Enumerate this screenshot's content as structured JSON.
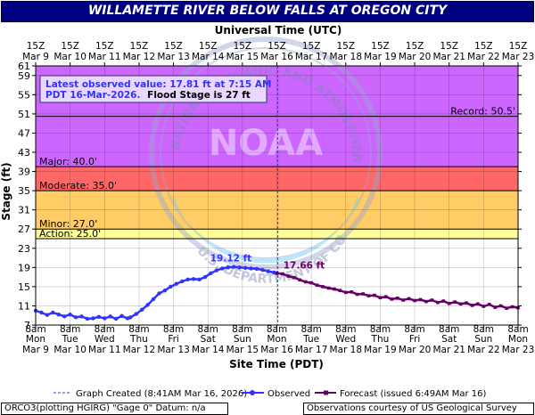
{
  "title": "WILLAMETTE RIVER BELOW FALLS AT OREGON CITY",
  "top_axis_label": "Universal Time (UTC)",
  "bottom_axis_label": "Site Time (PDT)",
  "y_axis_label": "Stage (ft)",
  "latest_value_line1": "Latest observed value: 17.81 ft at 7:15 AM",
  "latest_value_line2": "PDT 16-Mar-2026.",
  "latest_value_flood": "Flood Stage is 27 ft",
  "watermark_text": "NOAA",
  "watermark_ring_text": "NATIONAL OCEANIC AND ATMOSPHERIC ADMINISTRATION",
  "watermark_bottom_text": "U.S. DEPARTMENT OF COMMERCE",
  "legend": {
    "graph_created": "Graph Created (8:41AM Mar 16, 2026)",
    "observed": "Observed",
    "forecast": "Forecast (issued 6:49AM Mar 16)"
  },
  "footer_left": "ORCO3(plotting HGIRG) \"Gage 0\" Datum: n/a",
  "footer_right": "Observations courtesy of US Geological Survey",
  "colors": {
    "title_bg": "#000080",
    "record_zone": "#cc66ff",
    "major_zone": "#ff6666",
    "moderate_zone": "#ffcc66",
    "minor_zone": "#ffff99",
    "observed": "#3333ff",
    "forecast": "#660066",
    "plot_bg": "#ffffff",
    "watermark": "#66ccff"
  },
  "chart_data": {
    "type": "line",
    "title": "WILLAMETTE RIVER BELOW FALLS AT OREGON CITY",
    "xlabel": "Site Time (PDT)",
    "ylabel": "Stage (ft)",
    "x_range_hours": [
      0,
      336
    ],
    "ylim": [
      7,
      61
    ],
    "y_ticks": [
      7,
      11,
      15,
      19,
      23,
      27,
      31,
      35,
      39,
      43,
      47,
      51,
      55,
      59,
      61
    ],
    "x_ticks_bottom": [
      {
        "h": 0,
        "time": "8am",
        "day": "Mon",
        "date": "Mar 9"
      },
      {
        "h": 24,
        "time": "8am",
        "day": "Tue",
        "date": "Mar 10"
      },
      {
        "h": 48,
        "time": "8am",
        "day": "Wed",
        "date": "Mar 11"
      },
      {
        "h": 72,
        "time": "8am",
        "day": "Thu",
        "date": "Mar 12"
      },
      {
        "h": 96,
        "time": "8am",
        "day": "Fri",
        "date": "Mar 13"
      },
      {
        "h": 120,
        "time": "8am",
        "day": "Sat",
        "date": "Mar 14"
      },
      {
        "h": 144,
        "time": "8am",
        "day": "Sun",
        "date": "Mar 15"
      },
      {
        "h": 168,
        "time": "8am",
        "day": "Mon",
        "date": "Mar 16"
      },
      {
        "h": 192,
        "time": "8am",
        "day": "Tue",
        "date": "Mar 17"
      },
      {
        "h": 216,
        "time": "8am",
        "day": "Wed",
        "date": "Mar 18"
      },
      {
        "h": 240,
        "time": "8am",
        "day": "Thu",
        "date": "Mar 19"
      },
      {
        "h": 264,
        "time": "8am",
        "day": "Fri",
        "date": "Mar 20"
      },
      {
        "h": 288,
        "time": "8am",
        "day": "Sat",
        "date": "Mar 21"
      },
      {
        "h": 312,
        "time": "8am",
        "day": "Sun",
        "date": "Mar 22"
      },
      {
        "h": 336,
        "time": "8am",
        "day": "Mon",
        "date": "Mar 23"
      }
    ],
    "x_ticks_top": [
      {
        "h": 0,
        "time": "15Z",
        "date": "Mar  9"
      },
      {
        "h": 24,
        "time": "15Z",
        "date": "Mar 10"
      },
      {
        "h": 48,
        "time": "15Z",
        "date": "Mar 11"
      },
      {
        "h": 72,
        "time": "15Z",
        "date": "Mar 12"
      },
      {
        "h": 96,
        "time": "15Z",
        "date": "Mar 13"
      },
      {
        "h": 120,
        "time": "15Z",
        "date": "Mar 14"
      },
      {
        "h": 144,
        "time": "15Z",
        "date": "Mar 15"
      },
      {
        "h": 168,
        "time": "15Z",
        "date": "Mar 16"
      },
      {
        "h": 192,
        "time": "15Z",
        "date": "Mar 17"
      },
      {
        "h": 216,
        "time": "15Z",
        "date": "Mar 18"
      },
      {
        "h": 240,
        "time": "15Z",
        "date": "Mar 19"
      },
      {
        "h": 264,
        "time": "15Z",
        "date": "Mar 20"
      },
      {
        "h": 288,
        "time": "15Z",
        "date": "Mar 21"
      },
      {
        "h": 312,
        "time": "15Z",
        "date": "Mar 22"
      },
      {
        "h": 336,
        "time": "15Z",
        "date": "Mar 23"
      }
    ],
    "flood_categories": [
      {
        "name": "Record",
        "label": "Record: 50.5'",
        "from": 50.5,
        "to": 61,
        "color": "#cc66ff",
        "label_side": "right"
      },
      {
        "name": "Major",
        "label": "Major: 40.0'",
        "from": 40.0,
        "to": 50.5,
        "color": "#cc66ff",
        "label_side": "left"
      },
      {
        "name": "Moderate",
        "label": "Moderate: 35.0'",
        "from": 35.0,
        "to": 40.0,
        "color": "#ff6666",
        "label_side": "left"
      },
      {
        "name": "Minor",
        "label": "Minor: 27.0'",
        "from": 27.0,
        "to": 35.0,
        "color": "#ffcc66",
        "label_side": "left"
      },
      {
        "name": "Action",
        "label": "Action: 25.0'",
        "from": 25.0,
        "to": 27.0,
        "color": "#ffff99",
        "label_side": "left"
      }
    ],
    "graph_created_h": 168.7,
    "peak_annotation": {
      "label": "19.12 ft",
      "h": 136,
      "value": 19.12
    },
    "forecast_annotation": {
      "label": "17.66 ft",
      "h": 170,
      "value": 17.66
    },
    "series": [
      {
        "name": "Observed",
        "color": "#3333ff",
        "points": [
          [
            0,
            10.0
          ],
          [
            4,
            9.6
          ],
          [
            8,
            9.1
          ],
          [
            12,
            9.6
          ],
          [
            16,
            9.2
          ],
          [
            20,
            8.8
          ],
          [
            24,
            9.2
          ],
          [
            28,
            8.6
          ],
          [
            32,
            8.8
          ],
          [
            36,
            8.3
          ],
          [
            40,
            8.4
          ],
          [
            44,
            8.7
          ],
          [
            48,
            8.4
          ],
          [
            52,
            8.8
          ],
          [
            56,
            8.3
          ],
          [
            60,
            8.9
          ],
          [
            64,
            8.4
          ],
          [
            66,
            8.6
          ],
          [
            70,
            9.3
          ],
          [
            74,
            10.2
          ],
          [
            78,
            11.2
          ],
          [
            82,
            12.4
          ],
          [
            86,
            13.6
          ],
          [
            90,
            14.2
          ],
          [
            94,
            15.0
          ],
          [
            98,
            15.6
          ],
          [
            102,
            16.1
          ],
          [
            106,
            16.5
          ],
          [
            110,
            16.6
          ],
          [
            114,
            16.5
          ],
          [
            118,
            17.0
          ],
          [
            122,
            17.8
          ],
          [
            126,
            18.4
          ],
          [
            130,
            18.8
          ],
          [
            134,
            19.0
          ],
          [
            138,
            19.12
          ],
          [
            142,
            19.0
          ],
          [
            146,
            18.9
          ],
          [
            150,
            18.8
          ],
          [
            154,
            18.7
          ],
          [
            158,
            18.5
          ],
          [
            162,
            18.2
          ],
          [
            166,
            17.95
          ],
          [
            168,
            17.81
          ]
        ]
      },
      {
        "name": "Forecast",
        "color": "#660066",
        "points": [
          [
            168,
            17.81
          ],
          [
            172,
            17.66
          ],
          [
            176,
            17.2
          ],
          [
            180,
            16.9
          ],
          [
            184,
            16.4
          ],
          [
            188,
            16.0
          ],
          [
            192,
            15.8
          ],
          [
            196,
            15.3
          ],
          [
            200,
            15.0
          ],
          [
            204,
            14.7
          ],
          [
            208,
            14.5
          ],
          [
            212,
            14.2
          ],
          [
            216,
            13.8
          ],
          [
            220,
            13.9
          ],
          [
            224,
            13.4
          ],
          [
            228,
            13.5
          ],
          [
            232,
            13.1
          ],
          [
            236,
            13.2
          ],
          [
            240,
            12.7
          ],
          [
            244,
            12.9
          ],
          [
            248,
            12.4
          ],
          [
            252,
            12.6
          ],
          [
            256,
            12.2
          ],
          [
            260,
            12.5
          ],
          [
            264,
            12.1
          ],
          [
            268,
            12.3
          ],
          [
            272,
            11.9
          ],
          [
            276,
            12.2
          ],
          [
            280,
            11.7
          ],
          [
            284,
            12.0
          ],
          [
            288,
            11.5
          ],
          [
            292,
            11.8
          ],
          [
            296,
            11.4
          ],
          [
            300,
            11.6
          ],
          [
            304,
            11.1
          ],
          [
            308,
            11.4
          ],
          [
            312,
            10.9
          ],
          [
            316,
            11.3
          ],
          [
            320,
            10.7
          ],
          [
            324,
            11.0
          ],
          [
            328,
            10.5
          ],
          [
            332,
            10.8
          ],
          [
            336,
            10.6
          ]
        ]
      }
    ]
  }
}
